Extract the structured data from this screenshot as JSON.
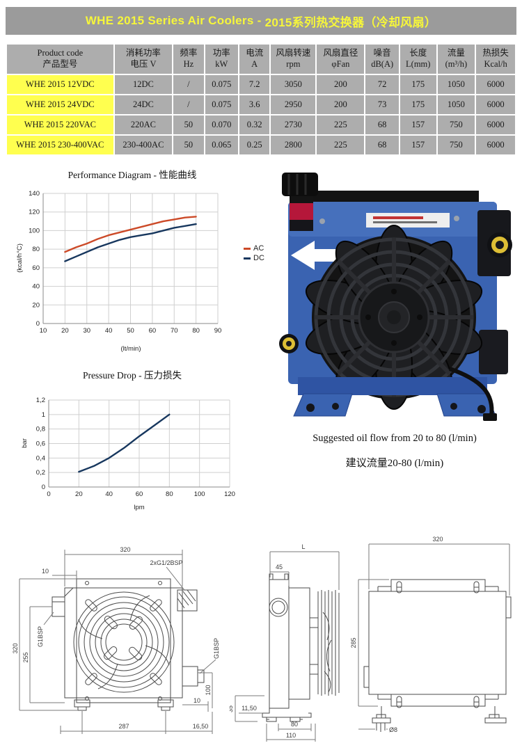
{
  "banner": {
    "title_en": "WHE 2015 Series Air Coolers - ",
    "title_zh": "2015系列热交换器（冷却风扇）"
  },
  "table": {
    "columns": [
      {
        "line1": "Product code",
        "line2": "产品型号"
      },
      {
        "line1": "消耗功率",
        "line2": "电压 V"
      },
      {
        "line1": "频率",
        "line2": "Hz"
      },
      {
        "line1": "功率",
        "line2": "kW"
      },
      {
        "line1": "电流",
        "line2": "A"
      },
      {
        "line1": "风扇转速",
        "line2": "rpm"
      },
      {
        "line1": "风扇直径",
        "line2": "φFan"
      },
      {
        "line1": "噪音",
        "line2": "dB(A)"
      },
      {
        "line1": "长度",
        "line2": "L(mm)"
      },
      {
        "line1": "流量",
        "line2": "(m³/h)"
      },
      {
        "line1": "热损失",
        "line2": "Kcal/h"
      }
    ],
    "rows": [
      [
        "WHE 2015 12VDC",
        "12DC",
        "/",
        "0.075",
        "7.2",
        "3050",
        "200",
        "72",
        "175",
        "1050",
        "6000"
      ],
      [
        "WHE 2015 24VDC",
        "24DC",
        "/",
        "0.075",
        "3.6",
        "2950",
        "200",
        "73",
        "175",
        "1050",
        "6000"
      ],
      [
        "WHE 2015 220VAC",
        "220AC",
        "50",
        "0.070",
        "0.32",
        "2730",
        "225",
        "68",
        "157",
        "750",
        "6000"
      ],
      [
        "WHE 2015 230-400VAC",
        "230-400AC",
        "50",
        "0.065",
        "0.25",
        "2800",
        "225",
        "68",
        "157",
        "750",
        "6000"
      ]
    ]
  },
  "chart_data": [
    {
      "type": "line",
      "title": "Performance Diagram - 性能曲线",
      "xlabel": "(lt/min)",
      "ylabel": "(kcal/h°C)",
      "xlim": [
        10,
        90
      ],
      "ylim": [
        0,
        140
      ],
      "xticks": [
        10,
        20,
        30,
        40,
        50,
        60,
        70,
        80,
        90
      ],
      "yticks": [
        0,
        20,
        40,
        60,
        80,
        100,
        120,
        140
      ],
      "grid": true,
      "legend_position": "right",
      "series": [
        {
          "name": "AC",
          "color": "#cc4a28",
          "x": [
            20,
            25,
            30,
            35,
            40,
            45,
            50,
            55,
            60,
            65,
            70,
            75,
            80
          ],
          "y": [
            77,
            82,
            86,
            91,
            95,
            98,
            101,
            104,
            107,
            110,
            112,
            114,
            115
          ]
        },
        {
          "name": "DC",
          "color": "#17375e",
          "x": [
            20,
            25,
            30,
            35,
            40,
            45,
            50,
            55,
            60,
            65,
            70,
            75,
            80
          ],
          "y": [
            67,
            72,
            77,
            82,
            86,
            90,
            93,
            95,
            97,
            100,
            103,
            105,
            107
          ]
        }
      ]
    },
    {
      "type": "line",
      "title": "Pressure Drop - 压力损失",
      "xlabel": "lpm",
      "ylabel": "bar",
      "xlim": [
        0,
        120
      ],
      "ylim": [
        0,
        1.2
      ],
      "xticks": [
        0,
        20,
        40,
        60,
        80,
        100,
        120
      ],
      "yticks": [
        0,
        0.2,
        0.4,
        0.6,
        0.8,
        1,
        1.2
      ],
      "ytick_labels": [
        "0",
        "0,2",
        "0,4",
        "0,6",
        "0,8",
        "1",
        "1,2"
      ],
      "grid": true,
      "legend_position": "none",
      "series": [
        {
          "name": "pressure drop",
          "color": "#17375e",
          "x": [
            20,
            30,
            40,
            50,
            60,
            70,
            80
          ],
          "y": [
            0.21,
            0.29,
            0.4,
            0.54,
            0.7,
            0.85,
            1.0
          ]
        }
      ]
    }
  ],
  "photo": {
    "caption_en": "Suggested oil flow from 20 to 80 (l/min)",
    "caption_zh": "建议流量20-80 (l/min)"
  },
  "drawings": {
    "front": {
      "width_top": "320",
      "offset_top_left": "10",
      "ports_top": "2xG1/2BSP",
      "height_left": "320",
      "height_inner": "255",
      "port_left": "G1BSP",
      "port_right": "G1BSP",
      "offset_right": "10",
      "height_right": "100",
      "width_bottom": "287",
      "offset_bottom_right": "16,50"
    },
    "side": {
      "length_top": "L",
      "depth_top": "45",
      "foot_offset": "11,50",
      "foot_height": "35",
      "width_foot": "80",
      "width_base": "110"
    },
    "rear": {
      "width_top": "320",
      "height_left": "285",
      "hole_dia": "Ø8"
    }
  }
}
